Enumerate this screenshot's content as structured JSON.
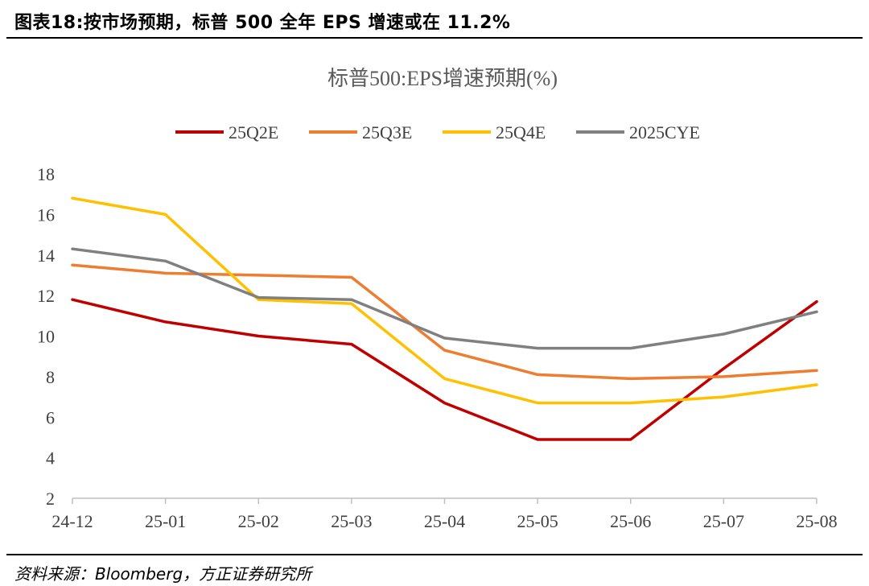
{
  "figure": {
    "title": "图表18:按市场预期，标普 500 全年 EPS 增速或在 11.2%",
    "source": "资料来源：Bloomberg，方正证券研究所"
  },
  "chart_data": {
    "type": "line",
    "title": "标普500:EPS增速预期(%)",
    "categories": [
      "24-12",
      "25-01",
      "25-02",
      "25-03",
      "25-04",
      "25-05",
      "25-06",
      "25-07",
      "25-08"
    ],
    "ylim": [
      2,
      18
    ],
    "yticks": [
      2,
      4,
      6,
      8,
      10,
      12,
      14,
      16,
      18
    ],
    "grid": false,
    "legend_position": "top",
    "series": [
      {
        "name": "25Q2E",
        "color": "#C00000",
        "values": [
          11.8,
          10.7,
          10.0,
          9.6,
          6.7,
          4.9,
          4.9,
          8.4,
          11.7
        ]
      },
      {
        "name": "25Q3E",
        "color": "#ED7D31",
        "values": [
          13.5,
          13.1,
          13.0,
          12.9,
          9.3,
          8.1,
          7.9,
          8.0,
          8.3
        ]
      },
      {
        "name": "25Q4E",
        "color": "#FFC000",
        "values": [
          16.8,
          16.0,
          11.8,
          11.6,
          7.9,
          6.7,
          6.7,
          7.0,
          7.6
        ]
      },
      {
        "name": "2025CYE",
        "color": "#808080",
        "values": [
          14.3,
          13.7,
          11.9,
          11.8,
          9.9,
          9.4,
          9.4,
          10.1,
          11.2
        ]
      }
    ]
  }
}
